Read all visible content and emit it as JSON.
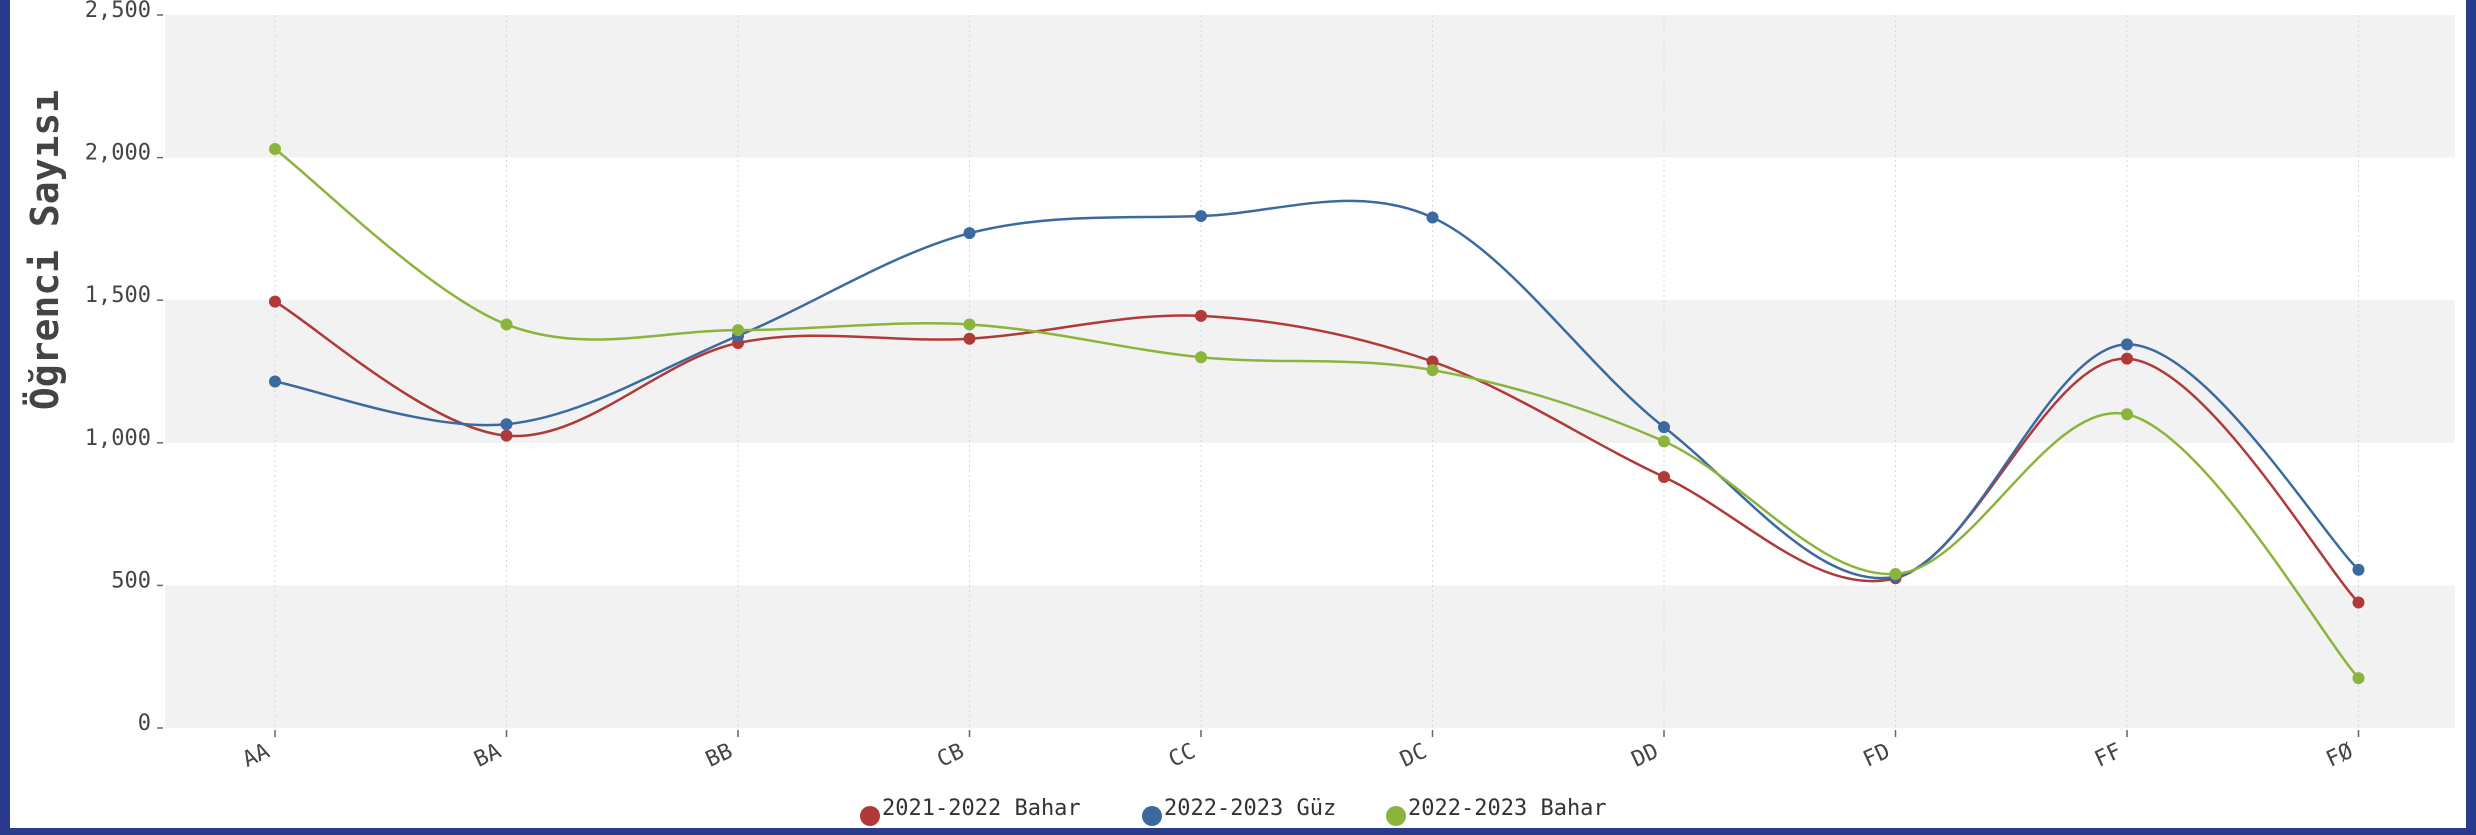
{
  "chart_data": {
    "type": "line",
    "ylabel": "Öğrenci Sayısı",
    "xlabel": "",
    "categories": [
      "AA",
      "BA",
      "BB",
      "CB",
      "CC",
      "DC",
      "DD",
      "FD",
      "FF",
      "FØ"
    ],
    "yticks": [
      0,
      500,
      1000,
      1500,
      2000,
      2500
    ],
    "ytick_labels": [
      "0",
      "500",
      "1,000",
      "1,500",
      "2,000",
      "2,500"
    ],
    "ylim": [
      0,
      2500
    ],
    "grid": "horizontal-bands",
    "legend_position": "bottom",
    "series": [
      {
        "name": "2021-2022 Bahar",
        "color": "#b03a3a",
        "values": [
          1495,
          1025,
          1350,
          1365,
          1445,
          1285,
          880,
          525,
          1295,
          440
        ]
      },
      {
        "name": "2022-2023 Güz",
        "color": "#3a6aa0",
        "values": [
          1215,
          1065,
          1375,
          1735,
          1795,
          1790,
          1055,
          530,
          1345,
          555
        ]
      },
      {
        "name": "2022-2023 Bahar",
        "color": "#8bb43c",
        "values": [
          2030,
          1415,
          1395,
          1415,
          1300,
          1255,
          1005,
          540,
          1100,
          175
        ]
      }
    ]
  }
}
